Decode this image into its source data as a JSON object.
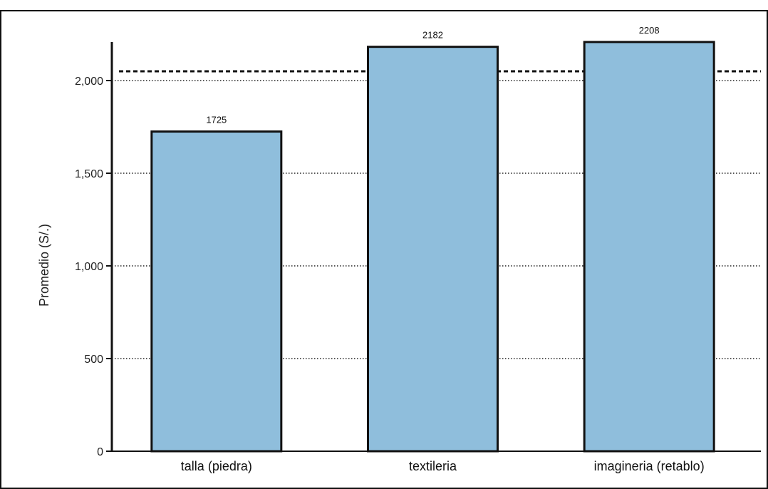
{
  "chart_data": {
    "type": "bar",
    "categories": [
      "talla (piedra)",
      "textileria",
      "imagineria (retablo)"
    ],
    "values": [
      1725,
      2182,
      2208
    ],
    "value_labels": [
      "1725",
      "2182",
      "2208"
    ],
    "ylabel": "Promedio (S/.)",
    "xlabel": "",
    "ylim": [
      0,
      2200
    ],
    "yticks": [
      0,
      500,
      1000,
      1500,
      2000
    ],
    "ytick_labels": [
      "0",
      "500",
      "1,000",
      "1,500",
      "2,000"
    ],
    "reference_line": 2050,
    "grid": true,
    "bar_color": "#8fbedc",
    "bar_edge_color": "#111111"
  }
}
